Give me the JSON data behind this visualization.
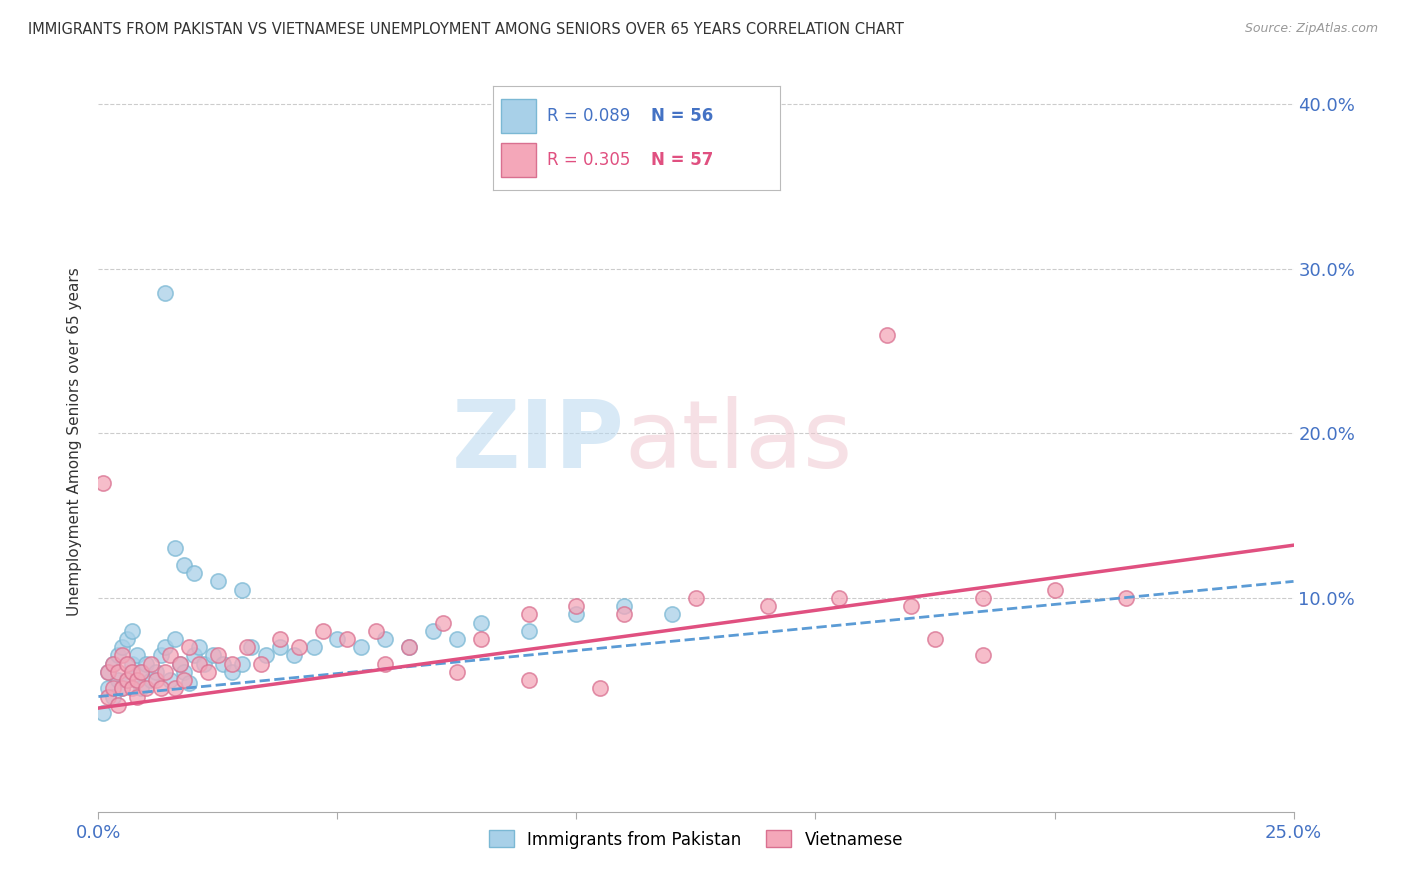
{
  "title": "IMMIGRANTS FROM PAKISTAN VS VIETNAMESE UNEMPLOYMENT AMONG SENIORS OVER 65 YEARS CORRELATION CHART",
  "source": "Source: ZipAtlas.com",
  "ylabel": "Unemployment Among Seniors over 65 years",
  "xlim": [
    0.0,
    0.25
  ],
  "ylim": [
    -0.03,
    0.42
  ],
  "legend1_r": "0.089",
  "legend1_n": "56",
  "legend2_r": "0.305",
  "legend2_n": "57",
  "blue_color": "#A8D0E8",
  "pink_color": "#F4A7B9",
  "blue_line_color": "#5B9BD5",
  "pink_line_color": "#E05080",
  "axis_color": "#4472C4",
  "pakistan_x": [
    0.001,
    0.002,
    0.002,
    0.003,
    0.003,
    0.004,
    0.004,
    0.005,
    0.005,
    0.006,
    0.006,
    0.007,
    0.007,
    0.008,
    0.008,
    0.009,
    0.009,
    0.01,
    0.011,
    0.012,
    0.013,
    0.014,
    0.015,
    0.016,
    0.017,
    0.018,
    0.019,
    0.02,
    0.021,
    0.022,
    0.024,
    0.026,
    0.028,
    0.03,
    0.032,
    0.035,
    0.038,
    0.041,
    0.045,
    0.05,
    0.055,
    0.06,
    0.065,
    0.07,
    0.075,
    0.08,
    0.09,
    0.1,
    0.11,
    0.12,
    0.014,
    0.016,
    0.018,
    0.02,
    0.025,
    0.03
  ],
  "pakistan_y": [
    0.03,
    0.045,
    0.055,
    0.04,
    0.06,
    0.05,
    0.065,
    0.045,
    0.07,
    0.05,
    0.075,
    0.06,
    0.08,
    0.05,
    0.065,
    0.045,
    0.055,
    0.06,
    0.05,
    0.055,
    0.065,
    0.07,
    0.05,
    0.075,
    0.06,
    0.055,
    0.048,
    0.065,
    0.07,
    0.06,
    0.065,
    0.06,
    0.055,
    0.06,
    0.07,
    0.065,
    0.07,
    0.065,
    0.07,
    0.075,
    0.07,
    0.075,
    0.07,
    0.08,
    0.075,
    0.085,
    0.08,
    0.09,
    0.095,
    0.09,
    0.285,
    0.13,
    0.12,
    0.115,
    0.11,
    0.105
  ],
  "vietnamese_x": [
    0.001,
    0.002,
    0.002,
    0.003,
    0.003,
    0.004,
    0.004,
    0.005,
    0.005,
    0.006,
    0.006,
    0.007,
    0.007,
    0.008,
    0.008,
    0.009,
    0.01,
    0.011,
    0.012,
    0.013,
    0.014,
    0.015,
    0.016,
    0.017,
    0.018,
    0.019,
    0.021,
    0.023,
    0.025,
    0.028,
    0.031,
    0.034,
    0.038,
    0.042,
    0.047,
    0.052,
    0.058,
    0.065,
    0.072,
    0.08,
    0.09,
    0.1,
    0.11,
    0.125,
    0.14,
    0.155,
    0.17,
    0.185,
    0.2,
    0.215,
    0.165,
    0.175,
    0.185,
    0.06,
    0.075,
    0.09,
    0.105
  ],
  "vietnamese_y": [
    0.17,
    0.04,
    0.055,
    0.045,
    0.06,
    0.035,
    0.055,
    0.045,
    0.065,
    0.05,
    0.06,
    0.045,
    0.055,
    0.04,
    0.05,
    0.055,
    0.045,
    0.06,
    0.05,
    0.045,
    0.055,
    0.065,
    0.045,
    0.06,
    0.05,
    0.07,
    0.06,
    0.055,
    0.065,
    0.06,
    0.07,
    0.06,
    0.075,
    0.07,
    0.08,
    0.075,
    0.08,
    0.07,
    0.085,
    0.075,
    0.09,
    0.095,
    0.09,
    0.1,
    0.095,
    0.1,
    0.095,
    0.1,
    0.105,
    0.1,
    0.26,
    0.075,
    0.065,
    0.06,
    0.055,
    0.05,
    0.045
  ],
  "trend_pak_x0": 0.0,
  "trend_pak_y0": 0.04,
  "trend_pak_x1": 0.25,
  "trend_pak_y1": 0.11,
  "trend_viet_x0": 0.0,
  "trend_viet_y0": 0.033,
  "trend_viet_x1": 0.25,
  "trend_viet_y1": 0.132
}
